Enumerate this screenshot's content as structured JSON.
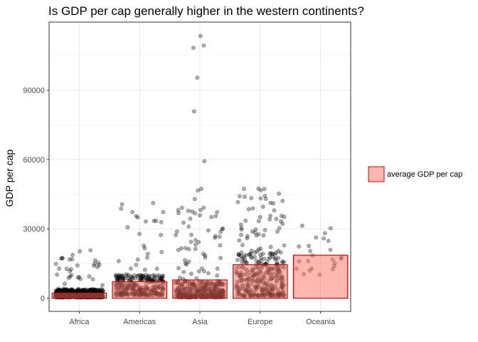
{
  "chart_data": {
    "type": "bar",
    "title": "Is GDP per cap generally higher in the western continents?",
    "xlabel": "",
    "ylabel": "GDP per cap",
    "categories": [
      "Africa",
      "Americas",
      "Asia",
      "Europe",
      "Oceania"
    ],
    "series": [
      {
        "name": "average GDP per cap",
        "values": [
          2194,
          7136,
          7902,
          14469,
          18622
        ]
      }
    ],
    "ylim": [
      -5700,
      119500
    ],
    "yticks": [
      0,
      30000,
      60000,
      90000
    ],
    "ytick_labels": [
      "0",
      "30000",
      "60000",
      "90000"
    ],
    "grid": true,
    "legend_position": "right",
    "colors": {
      "bar_fill": "#ff6f61",
      "bar_fill_opacity": 0.5,
      "bar_stroke": "#e00000",
      "point": "#000000",
      "point_opacity": 0.33
    },
    "points": {
      "description_counts": [
        624,
        300,
        396,
        360,
        24
      ],
      "notable_outliers": {
        "Asia": [
          108382,
          109347,
          113523,
          95458,
          80895,
          59265,
          47307,
          46610,
          42952
        ]
      }
    }
  }
}
